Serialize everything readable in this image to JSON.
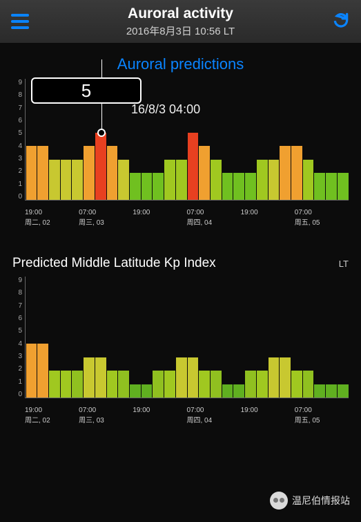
{
  "header": {
    "title": "Auroral activity",
    "subtitle": "2016年8月3日 10:56 LT"
  },
  "section_title": "Auroral predictions",
  "tooltip": {
    "value": "5",
    "time_label": "16/8/3 04:00"
  },
  "chart1": {
    "ymax": 9,
    "yticks": [
      "0",
      "1",
      "2",
      "3",
      "4",
      "5",
      "6",
      "7",
      "8",
      "9"
    ],
    "xlabels": [
      {
        "t": "19:00",
        "d": "周二, 02"
      },
      {
        "t": "07:00",
        "d": "周三, 03"
      },
      {
        "t": "19:00",
        "d": ""
      },
      {
        "t": "07:00",
        "d": "周四, 04"
      },
      {
        "t": "19:00",
        "d": ""
      },
      {
        "t": "07:00",
        "d": "周五, 05"
      }
    ],
    "bars": [
      {
        "v": 4,
        "c": "#f0a030"
      },
      {
        "v": 4,
        "c": "#f0a030"
      },
      {
        "v": 3,
        "c": "#c8c830"
      },
      {
        "v": 3,
        "c": "#c8c830"
      },
      {
        "v": 3,
        "c": "#c8c830"
      },
      {
        "v": 4,
        "c": "#f0a030"
      },
      {
        "v": 5,
        "c": "#e84020"
      },
      {
        "v": 4,
        "c": "#f0a030"
      },
      {
        "v": 3,
        "c": "#c8c830"
      },
      {
        "v": 2,
        "c": "#70c020"
      },
      {
        "v": 2,
        "c": "#70c020"
      },
      {
        "v": 2,
        "c": "#70c020"
      },
      {
        "v": 3,
        "c": "#a0c820"
      },
      {
        "v": 3,
        "c": "#a0c820"
      },
      {
        "v": 5,
        "c": "#e84020"
      },
      {
        "v": 4,
        "c": "#f0a030"
      },
      {
        "v": 3,
        "c": "#a0c820"
      },
      {
        "v": 2,
        "c": "#70c020"
      },
      {
        "v": 2,
        "c": "#70c020"
      },
      {
        "v": 2,
        "c": "#70c020"
      },
      {
        "v": 3,
        "c": "#a0c820"
      },
      {
        "v": 3,
        "c": "#c8c830"
      },
      {
        "v": 4,
        "c": "#f0a030"
      },
      {
        "v": 4,
        "c": "#f0a030"
      },
      {
        "v": 3,
        "c": "#a0c820"
      },
      {
        "v": 2,
        "c": "#70c020"
      },
      {
        "v": 2,
        "c": "#70c020"
      },
      {
        "v": 2,
        "c": "#70c020"
      }
    ],
    "crosshair_index": 6
  },
  "chart2": {
    "title": "Predicted Middle Latitude Kp Index",
    "lt_label": "LT",
    "ymax": 9,
    "yticks": [
      "0",
      "1",
      "2",
      "3",
      "4",
      "5",
      "6",
      "7",
      "8",
      "9"
    ],
    "xlabels": [
      {
        "t": "19:00",
        "d": "周二, 02"
      },
      {
        "t": "07:00",
        "d": "周三, 03"
      },
      {
        "t": "19:00",
        "d": ""
      },
      {
        "t": "07:00",
        "d": "周四, 04"
      },
      {
        "t": "19:00",
        "d": ""
      },
      {
        "t": "07:00",
        "d": "周五, 05"
      }
    ],
    "bars": [
      {
        "v": 4,
        "c": "#f0a030"
      },
      {
        "v": 4,
        "c": "#f0a030"
      },
      {
        "v": 2,
        "c": "#a0c820"
      },
      {
        "v": 2,
        "c": "#a0c820"
      },
      {
        "v": 2,
        "c": "#90c020"
      },
      {
        "v": 3,
        "c": "#c8c830"
      },
      {
        "v": 3,
        "c": "#c8c830"
      },
      {
        "v": 2,
        "c": "#a0c820"
      },
      {
        "v": 2,
        "c": "#90c020"
      },
      {
        "v": 1,
        "c": "#60b020"
      },
      {
        "v": 1,
        "c": "#60b020"
      },
      {
        "v": 2,
        "c": "#90c020"
      },
      {
        "v": 2,
        "c": "#a0c820"
      },
      {
        "v": 3,
        "c": "#c8c830"
      },
      {
        "v": 3,
        "c": "#c8c830"
      },
      {
        "v": 2,
        "c": "#a0c820"
      },
      {
        "v": 2,
        "c": "#90c020"
      },
      {
        "v": 1,
        "c": "#60b020"
      },
      {
        "v": 1,
        "c": "#60b020"
      },
      {
        "v": 2,
        "c": "#90c020"
      },
      {
        "v": 2,
        "c": "#a0c820"
      },
      {
        "v": 3,
        "c": "#c8c830"
      },
      {
        "v": 3,
        "c": "#c8c830"
      },
      {
        "v": 2,
        "c": "#a0c820"
      },
      {
        "v": 2,
        "c": "#90c020"
      },
      {
        "v": 1,
        "c": "#60b020"
      },
      {
        "v": 1,
        "c": "#60b020"
      },
      {
        "v": 1,
        "c": "#60b020"
      }
    ]
  },
  "watermark": {
    "text": "温尼伯情报站"
  }
}
